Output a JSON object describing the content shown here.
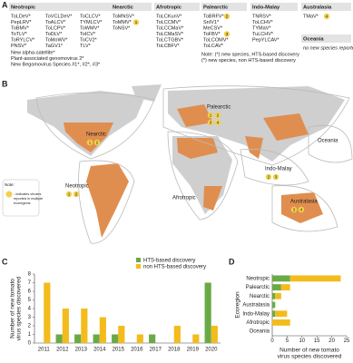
{
  "panel_a": {
    "label": "A",
    "regions": [
      {
        "name": "Neotropic",
        "viruses": [
          "ToLDeV*",
          "PepLRV*",
          "ToBMV*",
          "ToTLV*",
          "ToRYLCV*",
          "PNSV*",
          "ToVCLDeV*",
          "ToALCV*",
          "ToLCPV*",
          "ToDLV*",
          "ToMoWV*",
          "TaGV1*",
          "ToCLCV*",
          "TYMLCV*",
          "ToWMV*",
          "ToICV*",
          "ToCV2*",
          "TLV*"
        ],
        "extra": [
          "New alpha-satellite*",
          "Plant-associated genomovirus 2*",
          "New Begomovirus Species #1*, #2*, #3*"
        ]
      },
      {
        "name": "Nearctic",
        "viruses": [
          "ToMNSV*",
          {
            "name": "ToMMV*",
            "badge": "1"
          },
          "ToNSV*"
        ]
      },
      {
        "name": "Afrotropic",
        "viruses": [
          "ToLCKunV*",
          "ToLCCMV*",
          "ToLCCMaV*",
          "ToLCMaSV*",
          "ToLCTGBV*",
          "ToLCBFV*"
        ]
      },
      {
        "name": "Palearctic",
        "viruses": [
          {
            "name": "ToBRFV*",
            "badge": "2"
          },
          "SnIV1*",
          "MeCSV*",
          {
            "name": "ToFBV*",
            "badge": "3"
          },
          "ToLCOMV*",
          "ToLCAV*"
        ]
      },
      {
        "name": "Indo-Malay",
        "viruses": [
          "TNRSV*",
          "ToLCHV*",
          "TYMaV*",
          "TuLCHV*",
          "PepYLCAV*"
        ]
      },
      {
        "name": "Australasia",
        "viruses": [
          {
            "name": "TMaV*",
            "badge": "4"
          }
        ]
      },
      {
        "name": "Oceania",
        "viruses": [
          "no new species reported"
        ]
      }
    ],
    "note": [
      "Note: (*) new species, HTS-based discovery",
      "(*) new species, non HTS-based discovery"
    ]
  },
  "panel_b": {
    "label": "B",
    "regions": [
      {
        "name": "Nearctic",
        "badges": [
          "1",
          "2"
        ]
      },
      {
        "name": "Palearctic",
        "badges": [
          "1",
          "2",
          "3",
          "4"
        ]
      },
      {
        "name": "Neotropic",
        "badges": [
          "1",
          "2"
        ]
      },
      {
        "name": "Afrotropic",
        "badges": []
      },
      {
        "name": "Indo-Malay",
        "badges": [
          "2",
          "3"
        ]
      },
      {
        "name": "Oceania",
        "badges": []
      },
      {
        "name": "Australasia",
        "badges": [
          "3",
          "4"
        ]
      }
    ],
    "note_title": "Note:",
    "note_text": [
      "- indicates viruses",
      "reported in multiple",
      "ecoregions"
    ]
  },
  "chart_data": [
    {
      "type": "bar",
      "panel_label": "C",
      "ylabel": [
        "Number of new tomato",
        "virus species discovered"
      ],
      "categories": [
        "2011",
        "2012",
        "2013",
        "2014",
        "2015",
        "2016",
        "2017",
        "2018",
        "2019",
        "2020"
      ],
      "series": [
        {
          "name": "HTS-based discovery",
          "color": "#6aaa46",
          "values": [
            0,
            1,
            1,
            1,
            1,
            0,
            1,
            0,
            0,
            7
          ]
        },
        {
          "name": "non HTS-based discovery",
          "color": "#f3bc1c",
          "values": [
            7,
            4,
            4,
            3,
            2,
            1,
            0,
            2,
            1,
            2
          ]
        }
      ],
      "ylim": [
        0,
        8
      ],
      "yticks": [
        0,
        1,
        2,
        3,
        4,
        5,
        6,
        7,
        8
      ]
    },
    {
      "type": "stacked_barh",
      "panel_label": "D",
      "ylabel": "Ecoregion",
      "xlabel": [
        "Number of new tomato",
        "virus species discovered"
      ],
      "categories": [
        "Neotropic",
        "Palearctic",
        "Nearctic",
        "Australasia",
        "Indo-Malay",
        "Afrotropic",
        "Oceania"
      ],
      "series": [
        {
          "name": "HTS-based discovery",
          "color": "#6aaa46",
          "values": [
            6,
            3,
            1,
            1,
            1,
            0,
            0
          ]
        },
        {
          "name": "non HTS-based discovery",
          "color": "#f3bc1c",
          "values": [
            17,
            3,
            2,
            0,
            4,
            6,
            0
          ]
        }
      ],
      "xlim": [
        0,
        25
      ],
      "xticks": [
        0,
        5,
        10,
        15,
        20,
        25
      ]
    }
  ]
}
